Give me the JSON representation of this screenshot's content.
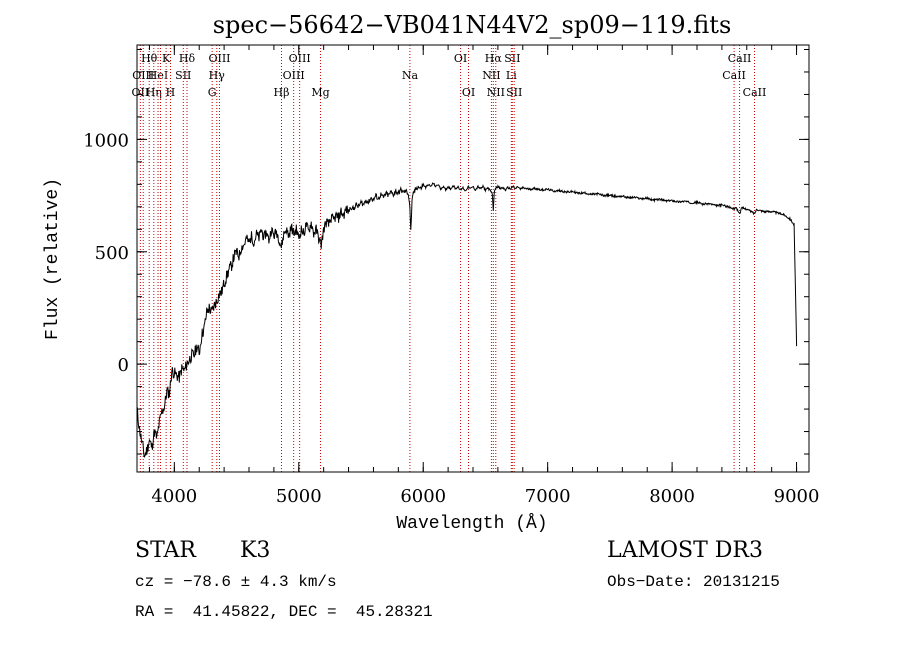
{
  "chart_data": {
    "type": "line",
    "title": "spec−56642−VB041N44V2_sp09−119.fits",
    "xlabel": "Wavelength (Å)",
    "ylabel": "Flux (relative)",
    "xlim": [
      3700,
      9100
    ],
    "ylim": [
      -480,
      1420
    ],
    "x_ticks": [
      4000,
      5000,
      6000,
      7000,
      8000,
      9000
    ],
    "y_ticks": [
      0,
      500,
      1000
    ],
    "x_minor_step": 200,
    "y_minor_step": 100,
    "grid": false,
    "series": [
      {
        "name": "flux",
        "points": [
          [
            3700,
            -200
          ],
          [
            3720,
            -290
          ],
          [
            3740,
            -350
          ],
          [
            3760,
            -410
          ],
          [
            3780,
            -380
          ],
          [
            3800,
            -340
          ],
          [
            3820,
            -370
          ],
          [
            3840,
            -300
          ],
          [
            3860,
            -330
          ],
          [
            3880,
            -260
          ],
          [
            3900,
            -210
          ],
          [
            3920,
            -190
          ],
          [
            3940,
            -120
          ],
          [
            3960,
            -130
          ],
          [
            3980,
            -30
          ],
          [
            4000,
            -40
          ],
          [
            4020,
            -50
          ],
          [
            4040,
            -60
          ],
          [
            4060,
            -20
          ],
          [
            4080,
            -30
          ],
          [
            4100,
            0
          ],
          [
            4120,
            20
          ],
          [
            4140,
            40
          ],
          [
            4160,
            40
          ],
          [
            4180,
            80
          ],
          [
            4200,
            50
          ],
          [
            4220,
            130
          ],
          [
            4240,
            160
          ],
          [
            4260,
            230
          ],
          [
            4280,
            250
          ],
          [
            4300,
            230
          ],
          [
            4320,
            260
          ],
          [
            4340,
            280
          ],
          [
            4360,
            310
          ],
          [
            4380,
            320
          ],
          [
            4400,
            360
          ],
          [
            4420,
            390
          ],
          [
            4440,
            420
          ],
          [
            4460,
            440
          ],
          [
            4480,
            480
          ],
          [
            4500,
            500
          ],
          [
            4520,
            480
          ],
          [
            4540,
            520
          ],
          [
            4560,
            530
          ],
          [
            4580,
            560
          ],
          [
            4600,
            540
          ],
          [
            4620,
            570
          ],
          [
            4640,
            540
          ],
          [
            4660,
            580
          ],
          [
            4680,
            560
          ],
          [
            4700,
            600
          ],
          [
            4720,
            560
          ],
          [
            4740,
            590
          ],
          [
            4760,
            550
          ],
          [
            4780,
            600
          ],
          [
            4800,
            570
          ],
          [
            4820,
            590
          ],
          [
            4840,
            560
          ],
          [
            4860,
            520
          ],
          [
            4880,
            580
          ],
          [
            4900,
            600
          ],
          [
            4920,
            570
          ],
          [
            4940,
            610
          ],
          [
            4960,
            580
          ],
          [
            4980,
            600
          ],
          [
            5000,
            560
          ],
          [
            5020,
            600
          ],
          [
            5040,
            580
          ],
          [
            5060,
            620
          ],
          [
            5080,
            590
          ],
          [
            5100,
            630
          ],
          [
            5120,
            580
          ],
          [
            5140,
            600
          ],
          [
            5160,
            560
          ],
          [
            5180,
            530
          ],
          [
            5200,
            600
          ],
          [
            5220,
            630
          ],
          [
            5240,
            620
          ],
          [
            5260,
            650
          ],
          [
            5280,
            640
          ],
          [
            5300,
            660
          ],
          [
            5320,
            650
          ],
          [
            5340,
            680
          ],
          [
            5360,
            660
          ],
          [
            5380,
            690
          ],
          [
            5400,
            680
          ],
          [
            5420,
            700
          ],
          [
            5440,
            690
          ],
          [
            5460,
            710
          ],
          [
            5480,
            700
          ],
          [
            5500,
            720
          ],
          [
            5520,
            710
          ],
          [
            5540,
            730
          ],
          [
            5560,
            720
          ],
          [
            5580,
            740
          ],
          [
            5600,
            730
          ],
          [
            5620,
            750
          ],
          [
            5640,
            735
          ],
          [
            5660,
            755
          ],
          [
            5680,
            740
          ],
          [
            5700,
            760
          ],
          [
            5720,
            750
          ],
          [
            5740,
            765
          ],
          [
            5760,
            755
          ],
          [
            5780,
            770
          ],
          [
            5800,
            760
          ],
          [
            5820,
            775
          ],
          [
            5840,
            765
          ],
          [
            5860,
            770
          ],
          [
            5880,
            760
          ],
          [
            5893,
            700
          ],
          [
            5900,
            590
          ],
          [
            5910,
            720
          ],
          [
            5920,
            760
          ],
          [
            5940,
            780
          ],
          [
            5960,
            790
          ],
          [
            5980,
            780
          ],
          [
            6000,
            800
          ],
          [
            6020,
            785
          ],
          [
            6040,
            800
          ],
          [
            6060,
            790
          ],
          [
            6080,
            805
          ],
          [
            6100,
            790
          ],
          [
            6120,
            800
          ],
          [
            6140,
            780
          ],
          [
            6160,
            790
          ],
          [
            6180,
            775
          ],
          [
            6200,
            790
          ],
          [
            6220,
            780
          ],
          [
            6240,
            795
          ],
          [
            6260,
            780
          ],
          [
            6280,
            790
          ],
          [
            6300,
            775
          ],
          [
            6320,
            785
          ],
          [
            6340,
            770
          ],
          [
            6360,
            790
          ],
          [
            6380,
            780
          ],
          [
            6400,
            790
          ],
          [
            6420,
            775
          ],
          [
            6440,
            790
          ],
          [
            6460,
            780
          ],
          [
            6480,
            790
          ],
          [
            6500,
            775
          ],
          [
            6520,
            785
          ],
          [
            6540,
            770
          ],
          [
            6555,
            760
          ],
          [
            6563,
            680
          ],
          [
            6570,
            760
          ],
          [
            6580,
            785
          ],
          [
            6600,
            790
          ],
          [
            6620,
            780
          ],
          [
            6640,
            785
          ],
          [
            6660,
            775
          ],
          [
            6680,
            785
          ],
          [
            6700,
            780
          ],
          [
            6720,
            790
          ],
          [
            6740,
            780
          ],
          [
            6760,
            790
          ],
          [
            6780,
            778
          ],
          [
            6800,
            785
          ],
          [
            6850,
            778
          ],
          [
            6900,
            782
          ],
          [
            6950,
            775
          ],
          [
            7000,
            778
          ],
          [
            7050,
            770
          ],
          [
            7100,
            772
          ],
          [
            7150,
            765
          ],
          [
            7200,
            768
          ],
          [
            7250,
            760
          ],
          [
            7300,
            762
          ],
          [
            7350,
            755
          ],
          [
            7400,
            758
          ],
          [
            7450,
            750
          ],
          [
            7500,
            752
          ],
          [
            7550,
            745
          ],
          [
            7600,
            748
          ],
          [
            7650,
            740
          ],
          [
            7700,
            742
          ],
          [
            7750,
            736
          ],
          [
            7800,
            738
          ],
          [
            7850,
            730
          ],
          [
            7900,
            733
          ],
          [
            7950,
            726
          ],
          [
            8000,
            728
          ],
          [
            8050,
            722
          ],
          [
            8100,
            725
          ],
          [
            8150,
            718
          ],
          [
            8200,
            720
          ],
          [
            8250,
            712
          ],
          [
            8300,
            714
          ],
          [
            8350,
            705
          ],
          [
            8400,
            708
          ],
          [
            8450,
            700
          ],
          [
            8498,
            690
          ],
          [
            8510,
            700
          ],
          [
            8542,
            670
          ],
          [
            8560,
            695
          ],
          [
            8600,
            690
          ],
          [
            8662,
            670
          ],
          [
            8680,
            690
          ],
          [
            8700,
            685
          ],
          [
            8750,
            678
          ],
          [
            8800,
            680
          ],
          [
            8850,
            672
          ],
          [
            8900,
            665
          ],
          [
            8950,
            645
          ],
          [
            8980,
            620
          ],
          [
            9000,
            80
          ]
        ]
      }
    ],
    "lines": [
      {
        "wavelength": 3727,
        "label": "OII",
        "row": 2
      },
      {
        "wavelength": 3750,
        "label": "OIII",
        "row": 1
      },
      {
        "wavelength": 3798,
        "label": "Hθ",
        "row": 0
      },
      {
        "wavelength": 3835,
        "label": "Hη",
        "row": 2
      },
      {
        "wavelength": 3869,
        "label": "HeI",
        "row": 1
      },
      {
        "wavelength": 3889,
        "label": "",
        "row": -1
      },
      {
        "wavelength": 3934,
        "label": "K",
        "row": 0
      },
      {
        "wavelength": 3969,
        "label": "H",
        "row": 2
      },
      {
        "wavelength": 4072,
        "label": "SII",
        "row": 1
      },
      {
        "wavelength": 4102,
        "label": "Hδ",
        "row": 0
      },
      {
        "wavelength": 4304,
        "label": "G",
        "row": 2
      },
      {
        "wavelength": 4341,
        "label": "Hγ",
        "row": 1
      },
      {
        "wavelength": 4363,
        "label": "OIII",
        "row": 0
      },
      {
        "wavelength": 4861,
        "label": "Hβ",
        "row": 2
      },
      {
        "wavelength": 4959,
        "label": "OIII",
        "row": 1
      },
      {
        "wavelength": 5007,
        "label": "OIII",
        "row": 0
      },
      {
        "wavelength": 5175,
        "label": "Mg",
        "row": 2
      },
      {
        "wavelength": 5893,
        "label": "Na",
        "row": 1
      },
      {
        "wavelength": 6300,
        "label": "OI",
        "row": 0
      },
      {
        "wavelength": 6364,
        "label": "OI",
        "row": 2
      },
      {
        "wavelength": 6548,
        "label": "NII",
        "row": 1
      },
      {
        "wavelength": 6563,
        "label": "Hα",
        "row": 0
      },
      {
        "wavelength": 6583,
        "label": "NII",
        "row": 2
      },
      {
        "wavelength": 6708,
        "label": "Li",
        "row": 1
      },
      {
        "wavelength": 6716,
        "label": "SII",
        "row": 0
      },
      {
        "wavelength": 6731,
        "label": "SII",
        "row": 2
      },
      {
        "wavelength": 8498,
        "label": "CaII",
        "row": 1
      },
      {
        "wavelength": 8542,
        "label": "CaII",
        "row": 0
      },
      {
        "wavelength": 8662,
        "label": "CaII",
        "row": 2
      }
    ],
    "line_color": "#cc0000"
  },
  "info": {
    "class": "STAR",
    "subclass": "K3",
    "survey": "LAMOST DR3",
    "cz": "cz = −78.6 ± 4.3 km/s",
    "obs_date": "Obs−Date: 20131215",
    "radec": "RA =  41.45822, DEC =  45.28321"
  }
}
